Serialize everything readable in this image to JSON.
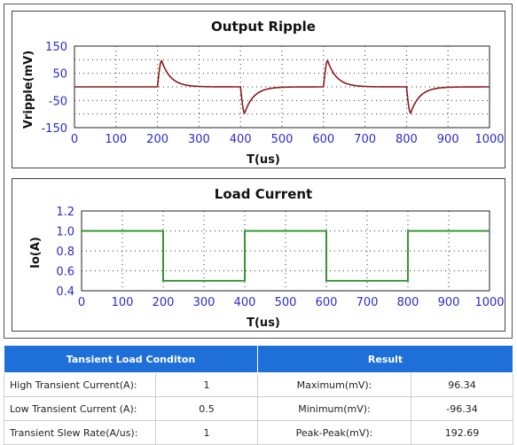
{
  "chart_data": [
    {
      "type": "line",
      "title": "Output Ripple",
      "xlabel": "T(us)",
      "ylabel": "Vripple(mV)",
      "xlim": [
        0,
        1000
      ],
      "ylim": [
        -150,
        150
      ],
      "x_ticks": [
        "0",
        "100",
        "200",
        "300",
        "400",
        "500",
        "600",
        "700",
        "800",
        "900",
        "1000"
      ],
      "y_ticks": [
        "150",
        "100",
        "50",
        "0",
        "-50",
        "-100",
        "-150"
      ],
      "y_tick_labels": [
        "150",
        "",
        "50",
        "",
        "-50",
        "",
        "-150"
      ],
      "grid": true,
      "series": [
        {
          "color": "#8b1a1a",
          "transients": [
            {
              "t": 200,
              "peak": 96.34
            },
            {
              "t": 400,
              "peak": -96.34
            },
            {
              "t": 600,
              "peak": 96.34
            },
            {
              "t": 800,
              "peak": -96.34
            }
          ]
        }
      ]
    },
    {
      "type": "line",
      "title": "Load Current",
      "xlabel": "T(us)",
      "ylabel": "Io(A)",
      "xlim": [
        0,
        1000
      ],
      "ylim": [
        0.4,
        1.2
      ],
      "x_ticks": [
        "0",
        "100",
        "200",
        "300",
        "400",
        "500",
        "600",
        "700",
        "800",
        "900",
        "1000"
      ],
      "y_ticks": [
        "1.2",
        "1.0",
        "0.8",
        "0.6",
        "0.4"
      ],
      "grid": true,
      "series": [
        {
          "color": "#1e8a1e",
          "x": [
            0,
            200,
            200,
            400,
            400,
            600,
            600,
            800,
            800,
            1000
          ],
          "y": [
            1.0,
            1.0,
            0.5,
            0.5,
            1.0,
            1.0,
            0.5,
            0.5,
            1.0,
            1.0
          ]
        }
      ]
    }
  ],
  "table": {
    "header_left": "Tansient Load Conditon",
    "header_right": "Result",
    "rows": [
      {
        "label": "High Transient Current(A):",
        "value": "1",
        "rlabel": "Maximum(mV):",
        "rvalue": "96.34"
      },
      {
        "label": "Low Transient Current (A):",
        "value": "0.5",
        "rlabel": "Minimum(mV):",
        "rvalue": "-96.34"
      },
      {
        "label": "Transient Slew Rate(A/us):",
        "value": "1",
        "rlabel": "Peak-Peak(mV):",
        "rvalue": "192.69"
      }
    ]
  }
}
